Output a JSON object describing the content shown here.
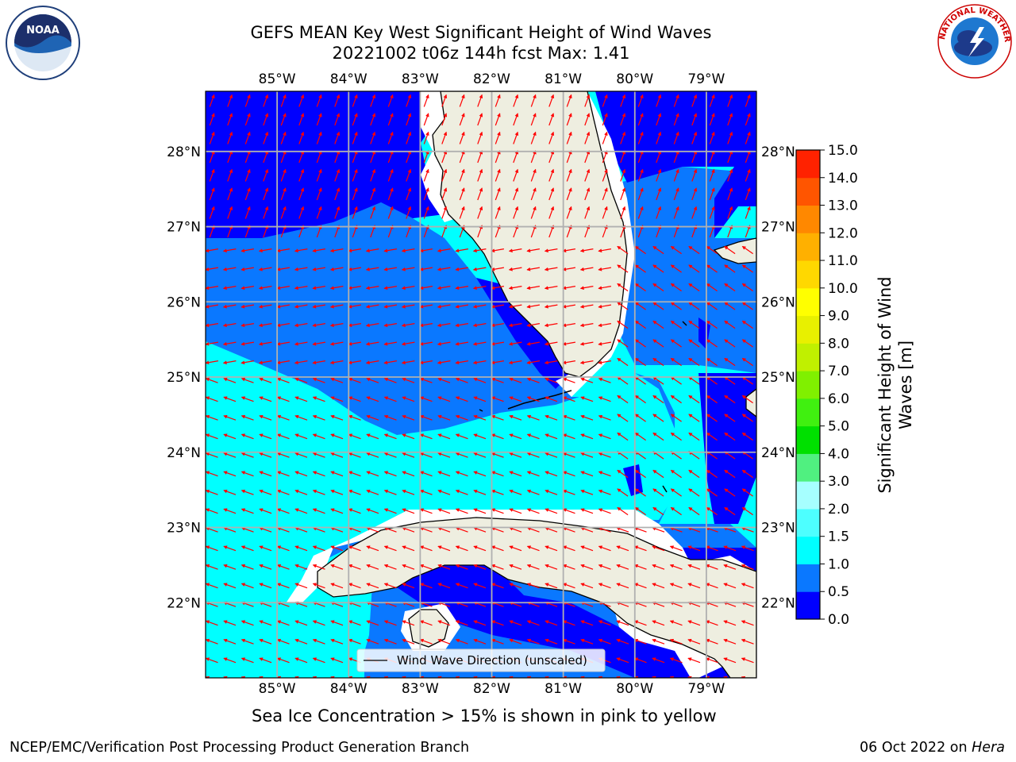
{
  "title": {
    "line1": "GEFS MEAN Key West Significant Height of Wind Waves",
    "line2": "20221002 t06z 144h fcst   Max: 1.41"
  },
  "map": {
    "lon_ticks": [
      -85,
      -84,
      -83,
      -82,
      -81,
      -80,
      -79
    ],
    "lon_labels": [
      "85°W",
      "84°W",
      "83°W",
      "82°W",
      "81°W",
      "80°W",
      "79°W"
    ],
    "lat_ticks": [
      28,
      27,
      26,
      25,
      24,
      23,
      22
    ],
    "lat_labels": [
      "28°N",
      "27°N",
      "26°N",
      "25°N",
      "24°N",
      "23°N",
      "22°N"
    ],
    "extent": {
      "lon_min": -86.0,
      "lon_max": -78.3,
      "lat_min": 21.0,
      "lat_max": 28.8
    },
    "legend_label": "Wind Wave Direction (unscaled)"
  },
  "colorbar": {
    "title_line1": "Significant Height of Wind",
    "title_line2": "Waves [m]",
    "levels": [
      "0.0",
      "0.5",
      "1.0",
      "1.5",
      "2.0",
      "3.0",
      "4.0",
      "5.0",
      "6.0",
      "7.0",
      "8.0",
      "9.0",
      "10.0",
      "11.0",
      "12.0",
      "13.0",
      "14.0",
      "15.0"
    ],
    "colors": [
      "#0000ff",
      "#0a78ff",
      "#00ffff",
      "#4dffff",
      "#a6ffff",
      "#50f080",
      "#00e000",
      "#40f010",
      "#80f000",
      "#c0f000",
      "#e8f000",
      "#ffff00",
      "#ffd800",
      "#ffb000",
      "#ff8800",
      "#ff5500",
      "#ff2200"
    ]
  },
  "note": "Sea Ice Concentration > 15% is shown in pink to yellow",
  "footer": {
    "left": "NCEP/EMC/Verification Post Processing Product Generation Branch",
    "right_prefix": "06 Oct 2022 on ",
    "right_machine": "Hera"
  },
  "logos": {
    "noaa_text": "NOAA",
    "nws_text": "NATIONAL WEATHER SERVICE"
  }
}
